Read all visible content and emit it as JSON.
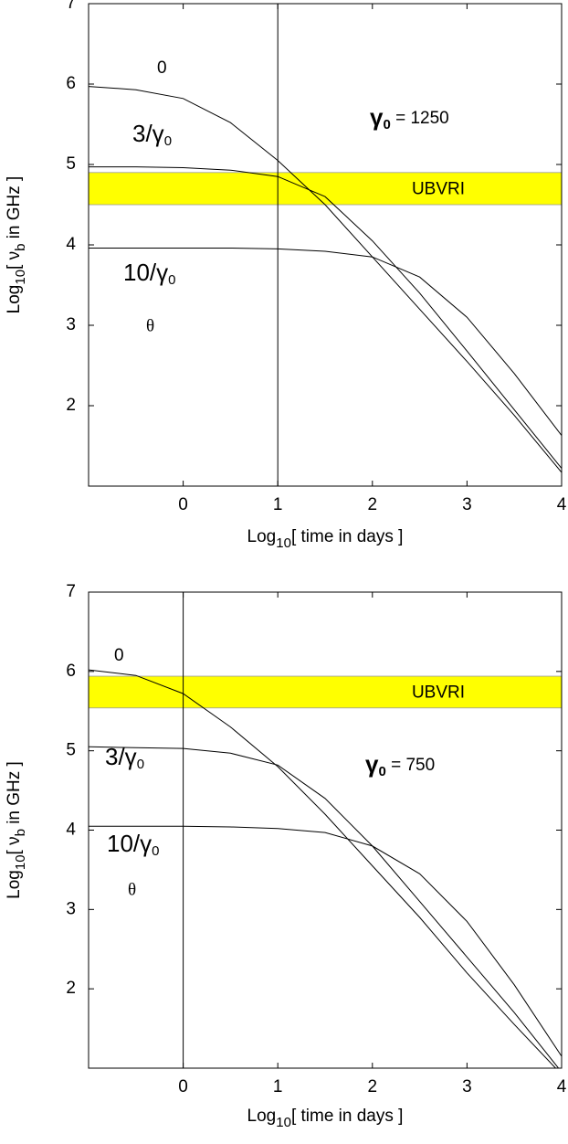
{
  "chart_data": [
    {
      "type": "line",
      "x": [
        -1,
        -0.5,
        0,
        0.5,
        1,
        1.5,
        2,
        2.5,
        3,
        3.5,
        4
      ],
      "series": [
        {
          "label_parts": [
            "0"
          ],
          "color": "#000000",
          "values": [
            5.97,
            5.93,
            5.82,
            5.52,
            5.05,
            4.5,
            3.85,
            3.2,
            2.55,
            1.88,
            1.17
          ]
        },
        {
          "label_parts": [
            "3/γ",
            "0"
          ],
          "color": "#000000",
          "values": [
            4.97,
            4.97,
            4.96,
            4.93,
            4.85,
            4.6,
            4.05,
            3.4,
            2.68,
            1.95,
            1.22
          ]
        },
        {
          "label_parts": [
            "10/γ",
            "0"
          ],
          "color": "#000000",
          "values": [
            3.96,
            3.96,
            3.96,
            3.96,
            3.95,
            3.92,
            3.85,
            3.6,
            3.1,
            2.4,
            1.63
          ]
        }
      ],
      "band": {
        "label": "UBVRI",
        "range": [
          4.5,
          4.9
        ],
        "color": "#ffff00"
      },
      "vline": 1,
      "theta": "θ",
      "gamma_parts": [
        "γ",
        "0",
        " = 1250"
      ],
      "x_label_parts": [
        "Log",
        "10",
        "[ time in days ]"
      ],
      "y_label_parts": [
        "Log",
        "10",
        "[ ν",
        "b",
        "  in GHz ]"
      ],
      "xlim": [
        -1,
        4
      ],
      "xticks": [
        0,
        1,
        2,
        3,
        4
      ],
      "ylim": [
        1,
        7
      ],
      "yticks": [
        2,
        3,
        4,
        5,
        6,
        7
      ]
    },
    {
      "type": "line",
      "x": [
        -1,
        -0.5,
        0,
        0.5,
        1,
        1.5,
        2,
        2.5,
        3,
        3.5,
        4
      ],
      "series": [
        {
          "label_parts": [
            "0"
          ],
          "color": "#000000",
          "values": [
            6.02,
            5.95,
            5.72,
            5.3,
            4.8,
            4.2,
            3.55,
            2.9,
            2.2,
            1.55,
            0.92
          ]
        },
        {
          "label_parts": [
            "3/γ",
            "0"
          ],
          "color": "#000000",
          "values": [
            5.05,
            5.04,
            5.03,
            4.97,
            4.82,
            4.4,
            3.8,
            3.1,
            2.4,
            1.7,
            0.95
          ]
        },
        {
          "label_parts": [
            "10/γ",
            "0"
          ],
          "color": "#000000",
          "values": [
            4.05,
            4.05,
            4.05,
            4.04,
            4.02,
            3.97,
            3.8,
            3.45,
            2.85,
            2.05,
            1.15
          ]
        }
      ],
      "band": {
        "label": "UBVRI",
        "range": [
          5.54,
          5.94
        ],
        "color": "#ffff00"
      },
      "vline": 0,
      "theta": "θ",
      "gamma_parts": [
        "γ",
        "0",
        " = 750"
      ],
      "x_label_parts": [
        "Log",
        "10",
        "[ time in days ]"
      ],
      "y_label_parts": [
        "Log",
        "10",
        "[ ν",
        "b",
        "  in GHz ]"
      ],
      "xlim": [
        -1,
        4
      ],
      "xticks": [
        0,
        1,
        2,
        3,
        4
      ],
      "ylim": [
        1,
        7
      ],
      "yticks": [
        2,
        3,
        4,
        5,
        6,
        7
      ]
    }
  ]
}
